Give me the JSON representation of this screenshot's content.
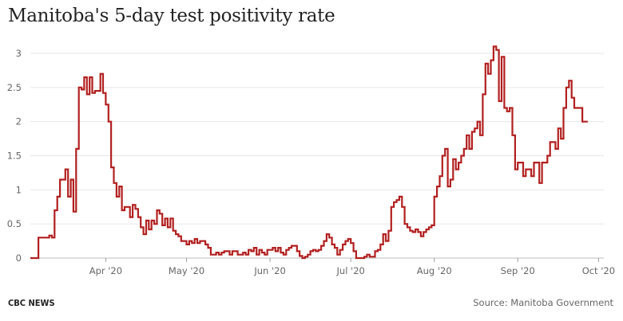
{
  "chart_data": {
    "type": "line",
    "step": true,
    "title": "Manitoba's 5-day test positivity rate",
    "xlabel": "",
    "ylabel": "",
    "x_start": "2020-03-04",
    "x_end": "2020-09-30",
    "ylim": [
      0,
      3
    ],
    "y_ticks": [
      0,
      0.5,
      1,
      1.5,
      2,
      2.5,
      3
    ],
    "y_tick_labels": [
      "0",
      "0.5",
      "1",
      "1.5",
      "2",
      "2.5",
      "3"
    ],
    "x_ticks": [
      {
        "date": "2020-04-01",
        "label": "Apr '20"
      },
      {
        "date": "2020-05-01",
        "label": "May '20"
      },
      {
        "date": "2020-06-01",
        "label": "Jun '20"
      },
      {
        "date": "2020-07-01",
        "label": "Jul '20"
      },
      {
        "date": "2020-08-01",
        "label": "Aug '20"
      },
      {
        "date": "2020-09-01",
        "label": "Sep '20"
      },
      {
        "date": "2020-10-01",
        "label": "Oct '20"
      }
    ],
    "grid": true,
    "legend": "none",
    "series": [
      {
        "color": "#b21f1f",
        "points": [
          [
            "2020-03-04",
            0
          ],
          [
            "2020-03-07",
            0.3
          ],
          [
            "2020-03-10",
            0.3
          ],
          [
            "2020-03-11",
            0.33
          ],
          [
            "2020-03-12",
            0.3
          ],
          [
            "2020-03-13",
            0.7
          ],
          [
            "2020-03-14",
            0.9
          ],
          [
            "2020-03-15",
            1.15
          ],
          [
            "2020-03-17",
            1.3
          ],
          [
            "2020-03-18",
            0.9
          ],
          [
            "2020-03-19",
            1.15
          ],
          [
            "2020-03-20",
            0.68
          ],
          [
            "2020-03-21",
            1.6
          ],
          [
            "2020-03-22",
            2.5
          ],
          [
            "2020-03-23",
            2.47
          ],
          [
            "2020-03-24",
            2.65
          ],
          [
            "2020-03-25",
            2.4
          ],
          [
            "2020-03-26",
            2.65
          ],
          [
            "2020-03-27",
            2.42
          ],
          [
            "2020-03-28",
            2.45
          ],
          [
            "2020-03-29",
            2.45
          ],
          [
            "2020-03-30",
            2.7
          ],
          [
            "2020-03-31",
            2.42
          ],
          [
            "2020-04-01",
            2.25
          ],
          [
            "2020-04-02",
            2.0
          ],
          [
            "2020-04-03",
            1.33
          ],
          [
            "2020-04-04",
            1.1
          ],
          [
            "2020-04-05",
            0.9
          ],
          [
            "2020-04-06",
            1.05
          ],
          [
            "2020-04-07",
            0.7
          ],
          [
            "2020-04-08",
            0.75
          ],
          [
            "2020-04-10",
            0.6
          ],
          [
            "2020-04-11",
            0.78
          ],
          [
            "2020-04-12",
            0.72
          ],
          [
            "2020-04-13",
            0.6
          ],
          [
            "2020-04-14",
            0.45
          ],
          [
            "2020-04-15",
            0.35
          ],
          [
            "2020-04-16",
            0.55
          ],
          [
            "2020-04-17",
            0.42
          ],
          [
            "2020-04-18",
            0.55
          ],
          [
            "2020-04-19",
            0.5
          ],
          [
            "2020-04-20",
            0.7
          ],
          [
            "2020-04-21",
            0.65
          ],
          [
            "2020-04-22",
            0.48
          ],
          [
            "2020-04-23",
            0.58
          ],
          [
            "2020-04-24",
            0.45
          ],
          [
            "2020-04-25",
            0.58
          ],
          [
            "2020-04-26",
            0.4
          ],
          [
            "2020-04-27",
            0.35
          ],
          [
            "2020-04-28",
            0.32
          ],
          [
            "2020-04-29",
            0.25
          ],
          [
            "2020-05-01",
            0.2
          ],
          [
            "2020-05-02",
            0.25
          ],
          [
            "2020-05-03",
            0.22
          ],
          [
            "2020-05-04",
            0.28
          ],
          [
            "2020-05-05",
            0.22
          ],
          [
            "2020-05-06",
            0.25
          ],
          [
            "2020-05-08",
            0.2
          ],
          [
            "2020-05-09",
            0.15
          ],
          [
            "2020-05-10",
            0.05
          ],
          [
            "2020-05-12",
            0.08
          ],
          [
            "2020-05-13",
            0.05
          ],
          [
            "2020-05-14",
            0.08
          ],
          [
            "2020-05-15",
            0.1
          ],
          [
            "2020-05-17",
            0.05
          ],
          [
            "2020-05-18",
            0.1
          ],
          [
            "2020-05-20",
            0.05
          ],
          [
            "2020-05-22",
            0.08
          ],
          [
            "2020-05-23",
            0.05
          ],
          [
            "2020-05-24",
            0.12
          ],
          [
            "2020-05-25",
            0.1
          ],
          [
            "2020-05-26",
            0.15
          ],
          [
            "2020-05-27",
            0.05
          ],
          [
            "2020-05-28",
            0.12
          ],
          [
            "2020-05-29",
            0.08
          ],
          [
            "2020-05-30",
            0.05
          ],
          [
            "2020-05-31",
            0.12
          ],
          [
            "2020-06-01",
            0.12
          ],
          [
            "2020-06-02",
            0.15
          ],
          [
            "2020-06-03",
            0.1
          ],
          [
            "2020-06-04",
            0.15
          ],
          [
            "2020-06-05",
            0.08
          ],
          [
            "2020-06-06",
            0.05
          ],
          [
            "2020-06-07",
            0.12
          ],
          [
            "2020-06-08",
            0.15
          ],
          [
            "2020-06-09",
            0.18
          ],
          [
            "2020-06-11",
            0.1
          ],
          [
            "2020-06-12",
            0.03
          ],
          [
            "2020-06-13",
            0.0
          ],
          [
            "2020-06-14",
            0.02
          ],
          [
            "2020-06-15",
            0.05
          ],
          [
            "2020-06-16",
            0.1
          ],
          [
            "2020-06-17",
            0.12
          ],
          [
            "2020-06-18",
            0.1
          ],
          [
            "2020-06-19",
            0.12
          ],
          [
            "2020-06-20",
            0.18
          ],
          [
            "2020-06-21",
            0.25
          ],
          [
            "2020-06-22",
            0.35
          ],
          [
            "2020-06-23",
            0.3
          ],
          [
            "2020-06-24",
            0.2
          ],
          [
            "2020-06-25",
            0.15
          ],
          [
            "2020-06-26",
            0.05
          ],
          [
            "2020-06-27",
            0.12
          ],
          [
            "2020-06-28",
            0.2
          ],
          [
            "2020-06-29",
            0.25
          ],
          [
            "2020-06-30",
            0.28
          ],
          [
            "2020-07-01",
            0.22
          ],
          [
            "2020-07-02",
            0.1
          ],
          [
            "2020-07-03",
            0.0
          ],
          [
            "2020-07-06",
            0.02
          ],
          [
            "2020-07-07",
            0.05
          ],
          [
            "2020-07-08",
            0.02
          ],
          [
            "2020-07-10",
            0.1
          ],
          [
            "2020-07-11",
            0.12
          ],
          [
            "2020-07-12",
            0.2
          ],
          [
            "2020-07-13",
            0.35
          ],
          [
            "2020-07-14",
            0.25
          ],
          [
            "2020-07-15",
            0.4
          ],
          [
            "2020-07-16",
            0.75
          ],
          [
            "2020-07-17",
            0.82
          ],
          [
            "2020-07-18",
            0.85
          ],
          [
            "2020-07-19",
            0.9
          ],
          [
            "2020-07-20",
            0.75
          ],
          [
            "2020-07-21",
            0.5
          ],
          [
            "2020-07-22",
            0.45
          ],
          [
            "2020-07-23",
            0.4
          ],
          [
            "2020-07-24",
            0.38
          ],
          [
            "2020-07-25",
            0.42
          ],
          [
            "2020-07-26",
            0.38
          ],
          [
            "2020-07-27",
            0.32
          ],
          [
            "2020-07-28",
            0.38
          ],
          [
            "2020-07-29",
            0.42
          ],
          [
            "2020-07-30",
            0.45
          ],
          [
            "2020-07-31",
            0.48
          ],
          [
            "2020-08-01",
            0.9
          ],
          [
            "2020-08-02",
            1.05
          ],
          [
            "2020-08-03",
            1.2
          ],
          [
            "2020-08-04",
            1.5
          ],
          [
            "2020-08-05",
            1.6
          ],
          [
            "2020-08-06",
            1.05
          ],
          [
            "2020-08-07",
            1.15
          ],
          [
            "2020-08-08",
            1.45
          ],
          [
            "2020-08-09",
            1.3
          ],
          [
            "2020-08-10",
            1.4
          ],
          [
            "2020-08-11",
            1.5
          ],
          [
            "2020-08-12",
            1.6
          ],
          [
            "2020-08-13",
            1.8
          ],
          [
            "2020-08-14",
            1.6
          ],
          [
            "2020-08-15",
            1.85
          ],
          [
            "2020-08-16",
            1.9
          ],
          [
            "2020-08-17",
            2.0
          ],
          [
            "2020-08-18",
            1.8
          ],
          [
            "2020-08-19",
            2.4
          ],
          [
            "2020-08-20",
            2.85
          ],
          [
            "2020-08-21",
            2.7
          ],
          [
            "2020-08-22",
            2.9
          ],
          [
            "2020-08-23",
            3.1
          ],
          [
            "2020-08-24",
            3.05
          ],
          [
            "2020-08-25",
            2.3
          ],
          [
            "2020-08-26",
            2.95
          ],
          [
            "2020-08-27",
            2.2
          ],
          [
            "2020-08-28",
            2.15
          ],
          [
            "2020-08-29",
            2.2
          ],
          [
            "2020-08-30",
            1.8
          ],
          [
            "2020-08-31",
            1.3
          ],
          [
            "2020-09-01",
            1.4
          ],
          [
            "2020-09-03",
            1.2
          ],
          [
            "2020-09-04",
            1.3
          ],
          [
            "2020-09-06",
            1.2
          ],
          [
            "2020-09-07",
            1.4
          ],
          [
            "2020-09-09",
            1.1
          ],
          [
            "2020-09-10",
            1.4
          ],
          [
            "2020-09-12",
            1.5
          ],
          [
            "2020-09-13",
            1.7
          ],
          [
            "2020-09-15",
            1.6
          ],
          [
            "2020-09-16",
            1.9
          ],
          [
            "2020-09-17",
            1.75
          ],
          [
            "2020-09-18",
            2.2
          ],
          [
            "2020-09-19",
            2.5
          ],
          [
            "2020-09-20",
            2.6
          ],
          [
            "2020-09-21",
            2.35
          ],
          [
            "2020-09-22",
            2.2
          ],
          [
            "2020-09-25",
            2.0
          ],
          [
            "2020-09-26",
            2.0
          ]
        ]
      }
    ]
  },
  "footer": {
    "brand": "CBC NEWS",
    "source": "Source: Manitoba Government"
  }
}
